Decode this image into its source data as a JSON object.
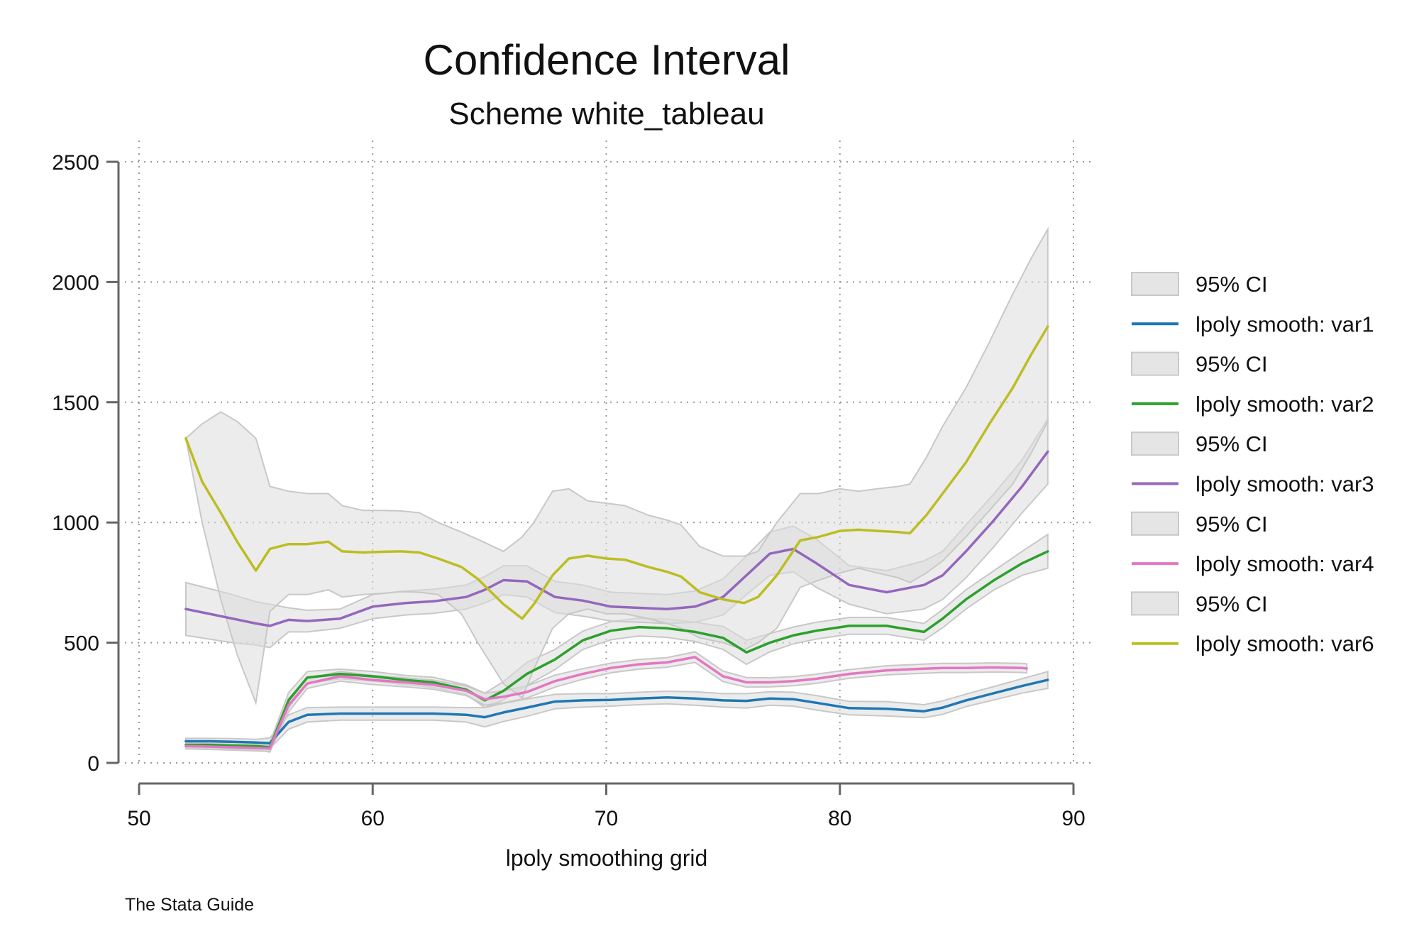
{
  "chart_data": {
    "type": "line",
    "title": "Confidence Interval",
    "subtitle": "Scheme white_tableau",
    "xlabel": "lpoly smoothing grid",
    "ylabel": "",
    "note": "The Stata Guide",
    "xlim": [
      50,
      90
    ],
    "ylim": [
      0,
      2500
    ],
    "xticks": [
      50,
      60,
      70,
      80,
      90
    ],
    "yticks": [
      0,
      500,
      1000,
      1500,
      2000,
      2500
    ],
    "grid": true,
    "legend_position": "right",
    "ci_fill_color": "#dcdcdc",
    "ci_edge_color": "#c8c8c8",
    "series": [
      {
        "name": "lpoly smooth: var1",
        "ci_label": "95% CI",
        "color": "#1f77b4",
        "x": [
          52,
          53,
          54,
          55,
          55.6,
          56.4,
          57.2,
          58.6,
          60,
          61.4,
          62.6,
          64,
          64.8,
          65.6,
          66.6,
          67.8,
          69,
          70.2,
          71.4,
          72.6,
          73.8,
          75,
          76,
          77,
          78,
          79,
          80.4,
          82,
          83.6,
          84.4,
          85.4,
          86.6,
          87.8,
          88.9
        ],
        "values": [
          90,
          90,
          88,
          85,
          82,
          170,
          200,
          205,
          205,
          205,
          205,
          200,
          190,
          210,
          230,
          255,
          260,
          262,
          268,
          272,
          268,
          260,
          258,
          268,
          265,
          250,
          228,
          225,
          215,
          230,
          260,
          290,
          320,
          345
        ],
        "ci_lower": [
          78,
          78,
          75,
          72,
          60,
          140,
          170,
          178,
          178,
          178,
          178,
          170,
          150,
          172,
          194,
          225,
          232,
          236,
          242,
          246,
          240,
          232,
          228,
          240,
          236,
          220,
          200,
          195,
          188,
          202,
          234,
          262,
          290,
          310
        ],
        "ci_upper": [
          102,
          102,
          101,
          98,
          104,
          200,
          230,
          232,
          232,
          232,
          232,
          230,
          230,
          248,
          266,
          285,
          288,
          288,
          294,
          298,
          296,
          288,
          288,
          296,
          294,
          280,
          256,
          255,
          242,
          258,
          286,
          318,
          350,
          380
        ]
      },
      {
        "name": "lpoly smooth: var2",
        "ci_label": "95% CI",
        "color": "#2ca02c",
        "x": [
          52,
          53,
          54,
          55,
          55.6,
          56.4,
          57.2,
          58.6,
          60,
          61.4,
          62.6,
          64,
          64.8,
          65.6,
          66.6,
          67.8,
          69,
          70.2,
          71.4,
          72.6,
          73.8,
          75,
          76,
          77,
          78,
          79,
          80.4,
          82,
          83.6,
          84.4,
          85.4,
          86.6,
          87.8,
          88.9
        ],
        "values": [
          75,
          75,
          72,
          70,
          65,
          260,
          355,
          370,
          360,
          345,
          335,
          305,
          260,
          300,
          370,
          430,
          510,
          550,
          565,
          560,
          545,
          520,
          460,
          500,
          530,
          550,
          570,
          570,
          545,
          600,
          680,
          760,
          830,
          880
        ],
        "ci_lower": [
          62,
          62,
          58,
          55,
          45,
          228,
          330,
          350,
          340,
          326,
          314,
          285,
          230,
          262,
          322,
          388,
          472,
          512,
          528,
          522,
          505,
          472,
          410,
          462,
          495,
          515,
          535,
          535,
          510,
          562,
          640,
          720,
          780,
          810
        ],
        "ci_upper": [
          88,
          88,
          86,
          85,
          85,
          292,
          380,
          390,
          380,
          364,
          356,
          325,
          290,
          338,
          418,
          472,
          548,
          588,
          602,
          598,
          585,
          568,
          510,
          538,
          565,
          585,
          605,
          605,
          580,
          638,
          720,
          800,
          880,
          950
        ]
      },
      {
        "name": "lpoly smooth: var3",
        "ci_label": "95% CI",
        "color": "#9467bd",
        "x": [
          52,
          53,
          54,
          55,
          55.6,
          56.4,
          57.2,
          58.6,
          60,
          61.4,
          62.6,
          64,
          64.8,
          65.6,
          66.6,
          67.8,
          69,
          70.2,
          71.4,
          72.6,
          73.8,
          75,
          76,
          77,
          78,
          79,
          80.4,
          82,
          83.6,
          84.4,
          85.4,
          86.6,
          87.8,
          88.9
        ],
        "values": [
          640,
          620,
          600,
          580,
          570,
          595,
          590,
          600,
          650,
          665,
          672,
          690,
          720,
          760,
          755,
          690,
          675,
          650,
          645,
          640,
          650,
          690,
          780,
          870,
          890,
          830,
          740,
          710,
          740,
          780,
          880,
          1010,
          1150,
          1295
        ],
        "ci_lower": [
          530,
          515,
          500,
          490,
          480,
          545,
          545,
          560,
          600,
          615,
          622,
          640,
          665,
          700,
          690,
          625,
          610,
          590,
          585,
          580,
          585,
          615,
          700,
          780,
          795,
          730,
          660,
          620,
          640,
          680,
          770,
          900,
          1040,
          1160
        ],
        "ci_upper": [
          750,
          725,
          700,
          670,
          660,
          645,
          635,
          640,
          700,
          715,
          722,
          740,
          775,
          820,
          820,
          755,
          740,
          710,
          705,
          700,
          715,
          765,
          860,
          960,
          985,
          930,
          820,
          800,
          840,
          880,
          990,
          1120,
          1260,
          1430
        ]
      },
      {
        "name": "lpoly smooth: var4",
        "ci_label": "95% CI",
        "color": "#e377c2",
        "x": [
          52,
          53,
          54,
          55,
          55.6,
          56.4,
          57.2,
          58.6,
          60,
          61.4,
          62.6,
          64,
          64.8,
          65.6,
          66.6,
          67.8,
          69,
          70.2,
          71.4,
          72.6,
          73.8,
          75,
          76,
          77,
          78,
          79,
          80.4,
          82,
          83.6,
          84.4,
          85.4,
          86.6,
          87.8,
          88
        ],
        "values": [
          70,
          68,
          65,
          62,
          60,
          240,
          330,
          360,
          345,
          335,
          325,
          300,
          265,
          275,
          295,
          340,
          370,
          395,
          410,
          418,
          440,
          360,
          335,
          335,
          340,
          350,
          370,
          385,
          392,
          395,
          395,
          397,
          395,
          393
        ],
        "ci_lower": [
          58,
          56,
          53,
          50,
          48,
          212,
          310,
          340,
          326,
          316,
          306,
          280,
          240,
          250,
          270,
          315,
          348,
          375,
          390,
          398,
          418,
          338,
          315,
          316,
          321,
          331,
          352,
          366,
          373,
          376,
          376,
          378,
          376,
          374
        ],
        "ci_upper": [
          82,
          80,
          77,
          74,
          72,
          268,
          350,
          380,
          364,
          354,
          344,
          320,
          290,
          300,
          320,
          365,
          392,
          415,
          430,
          438,
          462,
          382,
          355,
          354,
          359,
          369,
          388,
          404,
          411,
          414,
          414,
          416,
          414,
          412
        ]
      },
      {
        "name": "lpoly smooth: var6",
        "ci_label": "95% CI",
        "color": "#bcbd22",
        "x": [
          52,
          52.7,
          53.5,
          54.2,
          55,
          55.6,
          56.4,
          57.2,
          58.1,
          58.7,
          59.6,
          60.4,
          61.2,
          62,
          62.8,
          63.8,
          64.5,
          65.6,
          66.4,
          66.9,
          67.7,
          68.4,
          69.2,
          70,
          70.8,
          71.8,
          72.6,
          73.2,
          74,
          75,
          75.9,
          76.5,
          77.3,
          78.3,
          79.1,
          80,
          80.8,
          81.6,
          82.5,
          83,
          83.7,
          84.4,
          85.4,
          86.4,
          87.4,
          88.2,
          88.9
        ],
        "values": [
          1350,
          1170,
          1040,
          920,
          800,
          890,
          910,
          910,
          920,
          880,
          875,
          878,
          880,
          875,
          850,
          815,
          765,
          660,
          600,
          660,
          780,
          850,
          862,
          850,
          845,
          815,
          795,
          775,
          710,
          680,
          665,
          690,
          780,
          925,
          940,
          965,
          970,
          965,
          960,
          955,
          1030,
          1120,
          1250,
          1410,
          1560,
          1700,
          1815
        ],
        "ci_lower": [
          1350,
          1000,
          680,
          450,
          250,
          630,
          700,
          700,
          720,
          690,
          700,
          705,
          712,
          710,
          700,
          620,
          500,
          330,
          270,
          390,
          560,
          620,
          640,
          620,
          620,
          600,
          580,
          560,
          520,
          500,
          470,
          500,
          560,
          730,
          760,
          790,
          810,
          790,
          770,
          750,
          790,
          840,
          940,
          1050,
          1160,
          1290,
          1420
        ],
        "ci_upper": [
          1350,
          1410,
          1460,
          1420,
          1350,
          1150,
          1130,
          1120,
          1120,
          1070,
          1050,
          1050,
          1048,
          1040,
          1000,
          960,
          930,
          880,
          940,
          1000,
          1130,
          1140,
          1090,
          1080,
          1070,
          1030,
          1010,
          990,
          900,
          860,
          860,
          880,
          1000,
          1120,
          1120,
          1140,
          1130,
          1140,
          1150,
          1160,
          1270,
          1400,
          1560,
          1750,
          1950,
          2100,
          2220
        ]
      }
    ]
  }
}
